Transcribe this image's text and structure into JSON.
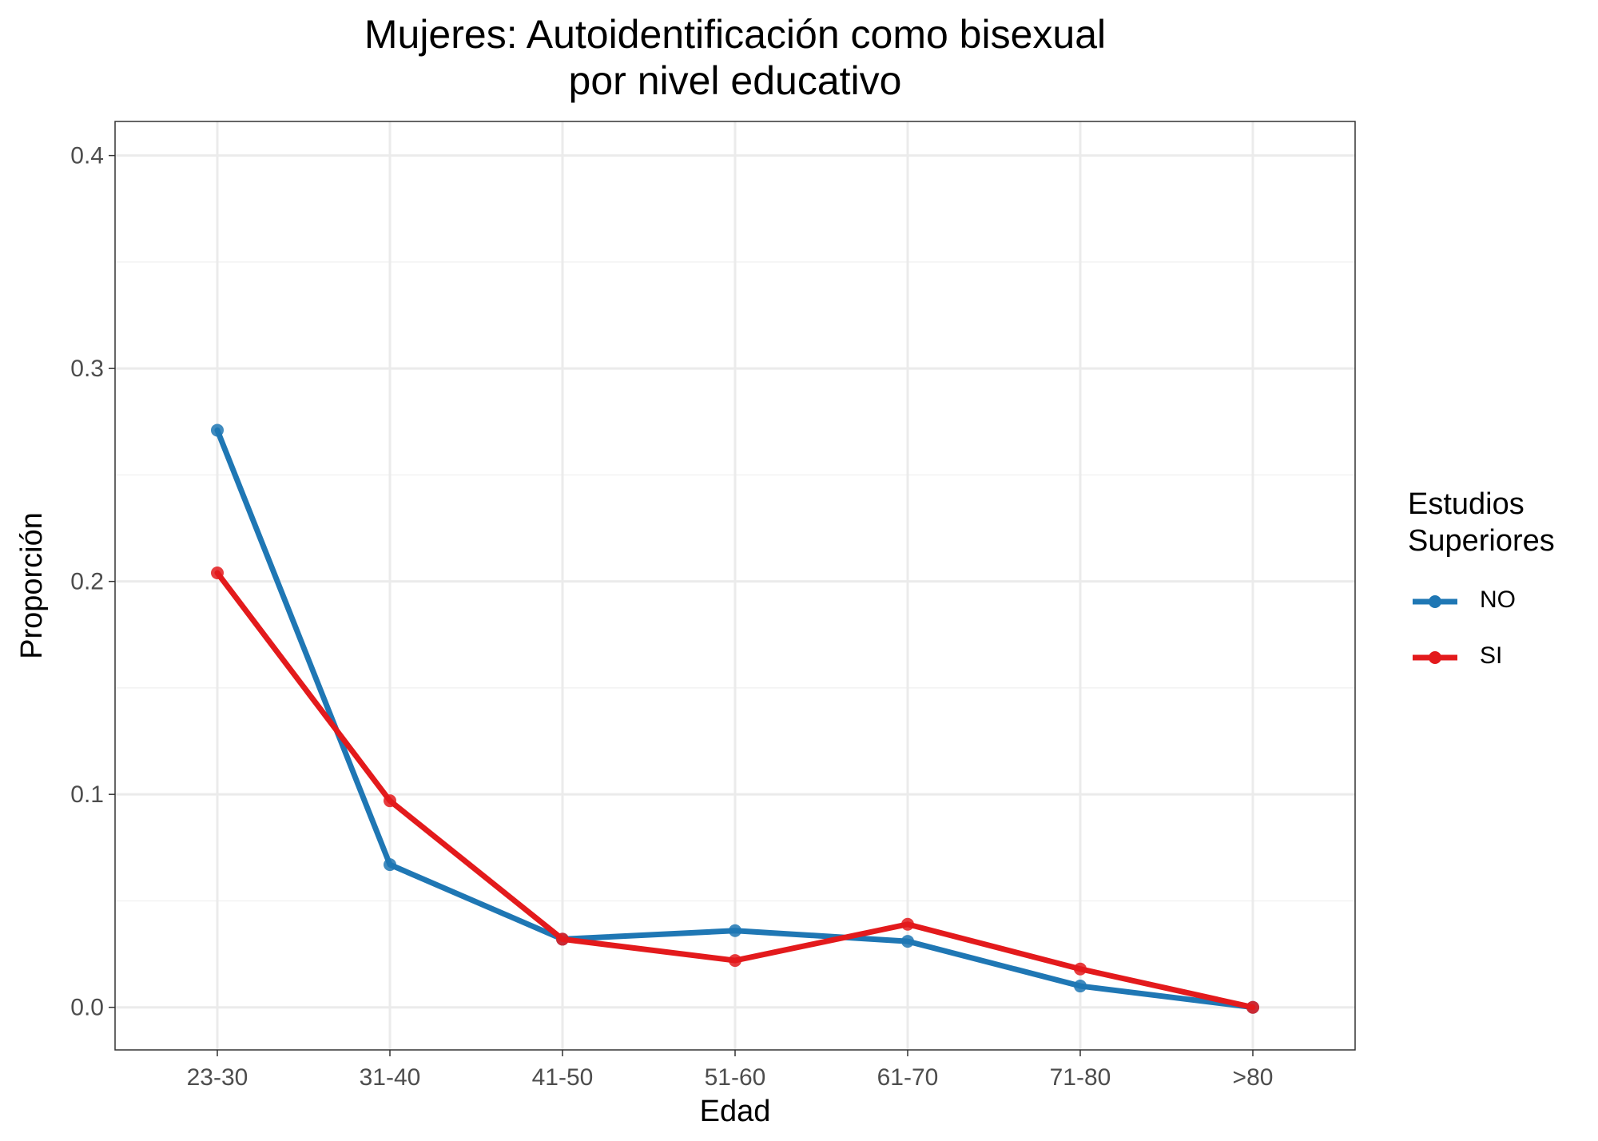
{
  "chart_data": {
    "type": "line",
    "title": "Mujeres: Autoidentificación como bisexual",
    "subtitle": "por nivel educativo",
    "xlabel": "Edad",
    "ylabel": "Proporción",
    "categories": [
      "23-30",
      "31-40",
      "41-50",
      "51-60",
      "61-70",
      "71-80",
      ">80"
    ],
    "ylim": [
      -0.02,
      0.416
    ],
    "yticks": [
      0.0,
      0.1,
      0.2,
      0.3,
      0.4
    ],
    "ytick_labels": [
      "0.0",
      "0.1",
      "0.2",
      "0.3",
      "0.4"
    ],
    "grid": true,
    "legend": {
      "title_line1": "Estudios",
      "title_line2": "Superiores",
      "placement": "right"
    },
    "series": [
      {
        "name": "NO",
        "color": "#1f77b4",
        "values": [
          0.271,
          0.067,
          0.032,
          0.036,
          0.031,
          0.01,
          0.0
        ]
      },
      {
        "name": "SI",
        "color": "#e31a1c",
        "values": [
          0.204,
          0.097,
          0.032,
          0.022,
          0.039,
          0.018,
          0.0
        ]
      }
    ]
  }
}
